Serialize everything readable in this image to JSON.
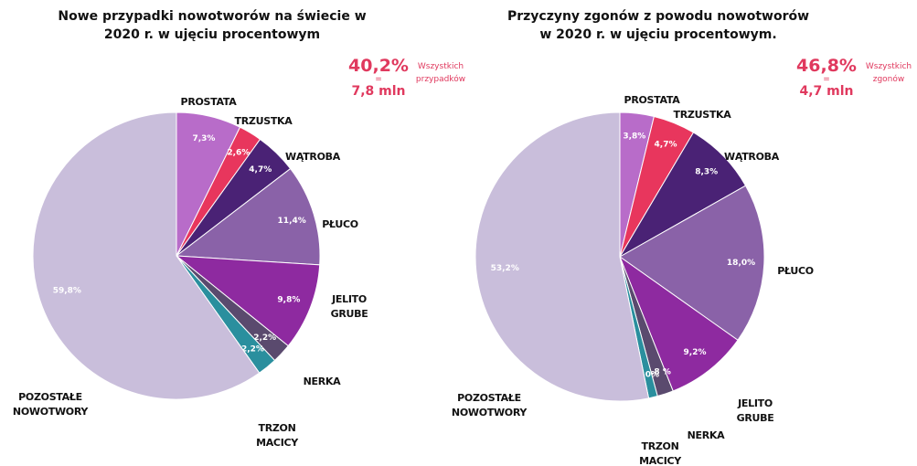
{
  "chart_data": [
    {
      "type": "pie",
      "title": "Nowe przypadki nowotworów na świecie w 2020 r. w ujęciu procentowym",
      "categories": [
        "PROSTATA",
        "TRZUSTKA",
        "WĄTROBA",
        "PŁUCO",
        "JELITO GRUBE",
        "NERKA",
        "TRZON MACICY",
        "POZOSTAŁE NOWOTWORY"
      ],
      "values": [
        7.3,
        2.6,
        4.7,
        11.4,
        9.8,
        2.2,
        2.2,
        59.8
      ],
      "value_labels": [
        "7,3%",
        "2,6%",
        "4,7%",
        "11,4%",
        "9,8%",
        "2,2%",
        "2,2%",
        "59,8%"
      ],
      "colors": [
        "#b86cc9",
        "#e8365d",
        "#4a2275",
        "#8a62a8",
        "#8e2aa0",
        "#5a4a6e",
        "#2a8f9e",
        "#c9bedb"
      ],
      "annotation": {
        "percent": "40,2%",
        "equals": "=",
        "amount": "7,8 mln",
        "note": "Wszystkich przypadków"
      }
    },
    {
      "type": "pie",
      "title": "Przyczyny zgonów z powodu nowotworów w 2020 r. w ujęciu procentowym.",
      "categories": [
        "PROSTATA",
        "TRZUSTKA",
        "WĄTROBA",
        "PŁUCO",
        "JELITO GRUBE",
        "NERKA",
        "TRZON MACICY",
        "POZOSTAŁE NOWOTWORY"
      ],
      "values": [
        3.8,
        4.7,
        8.3,
        18.0,
        9.2,
        1.8,
        1.0,
        53.2
      ],
      "value_labels": [
        "3,8%",
        "4,7%",
        "8,3%",
        "18,0%",
        "9,2%",
        "1,8 %",
        "1,0%",
        "53,2%"
      ],
      "colors": [
        "#b86cc9",
        "#e8365d",
        "#4a2275",
        "#8a62a8",
        "#8e2aa0",
        "#5a4a6e",
        "#2a8f9e",
        "#c9bedb"
      ],
      "annotation": {
        "percent": "46,8%",
        "equals": "=",
        "amount": "4,7 mln",
        "note": "Wszystkich zgonów"
      }
    }
  ]
}
